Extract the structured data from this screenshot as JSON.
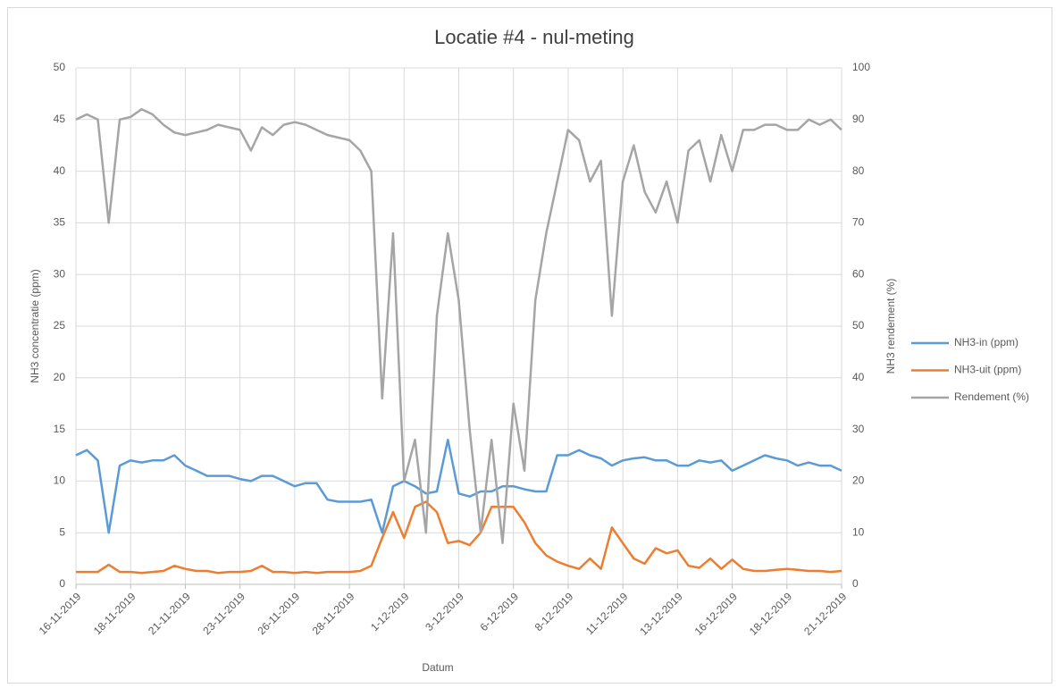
{
  "chart_data": {
    "type": "line",
    "title": "Locatie #4 - nul-meting",
    "x_label": "Datum",
    "y_label": "NH3 concentratie (ppm)",
    "y2_label": "NH3 rendement (%)",
    "x": [
      "2019-11-16T00:00",
      "2019-11-16T12:00",
      "2019-11-17T00:00",
      "2019-11-17T12:00",
      "2019-11-18T00:00",
      "2019-11-18T12:00",
      "2019-11-19T00:00",
      "2019-11-19T12:00",
      "2019-11-20T00:00",
      "2019-11-20T12:00",
      "2019-11-21T00:00",
      "2019-11-21T12:00",
      "2019-11-22T00:00",
      "2019-11-22T12:00",
      "2019-11-23T00:00",
      "2019-11-23T12:00",
      "2019-11-24T00:00",
      "2019-11-24T12:00",
      "2019-11-25T00:00",
      "2019-11-25T12:00",
      "2019-11-26T00:00",
      "2019-11-26T12:00",
      "2019-11-27T00:00",
      "2019-11-27T12:00",
      "2019-11-28T00:00",
      "2019-11-28T12:00",
      "2019-11-29T00:00",
      "2019-11-29T12:00",
      "2019-11-30T00:00",
      "2019-11-30T12:00",
      "2019-12-01T00:00",
      "2019-12-01T12:00",
      "2019-12-02T00:00",
      "2019-12-02T12:00",
      "2019-12-03T00:00",
      "2019-12-03T12:00",
      "2019-12-04T00:00",
      "2019-12-04T12:00",
      "2019-12-05T00:00",
      "2019-12-05T12:00",
      "2019-12-06T00:00",
      "2019-12-06T12:00",
      "2019-12-07T00:00",
      "2019-12-07T12:00",
      "2019-12-08T00:00",
      "2019-12-08T12:00",
      "2019-12-09T00:00",
      "2019-12-09T12:00",
      "2019-12-10T00:00",
      "2019-12-10T12:00",
      "2019-12-11T00:00",
      "2019-12-11T12:00",
      "2019-12-12T00:00",
      "2019-12-12T12:00",
      "2019-12-13T00:00",
      "2019-12-13T12:00",
      "2019-12-14T00:00",
      "2019-12-14T12:00",
      "2019-12-15T00:00",
      "2019-12-15T12:00",
      "2019-12-16T00:00",
      "2019-12-16T12:00",
      "2019-12-17T00:00",
      "2019-12-17T12:00",
      "2019-12-18T00:00",
      "2019-12-18T12:00",
      "2019-12-19T00:00",
      "2019-12-19T12:00",
      "2019-12-20T00:00",
      "2019-12-20T12:00",
      "2019-12-21T00:00"
    ],
    "series": [
      {
        "name": "NH3-in (ppm)",
        "color": "#5b9bd5",
        "values": [
          12.5,
          13,
          12,
          5,
          11.5,
          12,
          11.8,
          12,
          12,
          12.5,
          11.5,
          11,
          10.5,
          10.5,
          10.5,
          10.2,
          10,
          10.5,
          10.5,
          10,
          9.5,
          9.8,
          9.8,
          8.2,
          8,
          8,
          8,
          8.2,
          5,
          9.5,
          10,
          9.5,
          8.8,
          9,
          14,
          8.8,
          8.5,
          9,
          9,
          9.5,
          9.5,
          9.2,
          9,
          9,
          12.5,
          12.5,
          13,
          12.5,
          12.2,
          11.5,
          12,
          12.2,
          12.3,
          12,
          12,
          11.5,
          11.5,
          12,
          11.8,
          12,
          11,
          11.5,
          12,
          12.5,
          12.2,
          12,
          11.5,
          11.8,
          11.5,
          11.5,
          11
        ]
      },
      {
        "name": "NH3-uit (ppm)",
        "color": "#ed7d31",
        "values": [
          1.2,
          1.2,
          1.2,
          1.9,
          1.2,
          1.2,
          1.1,
          1.2,
          1.3,
          1.8,
          1.5,
          1.3,
          1.3,
          1.1,
          1.2,
          1.2,
          1.3,
          1.8,
          1.2,
          1.2,
          1.1,
          1.2,
          1.1,
          1.2,
          1.2,
          1.2,
          1.3,
          1.8,
          4.5,
          7,
          4.5,
          7.5,
          8,
          7,
          4,
          4.2,
          3.8,
          5,
          7.5,
          7.5,
          7.5,
          6,
          4,
          2.8,
          2.2,
          1.8,
          1.5,
          2.5,
          1.5,
          5.5,
          4,
          2.5,
          2,
          3.5,
          3,
          3.3,
          1.8,
          1.6,
          2.5,
          1.5,
          2.4,
          1.5,
          1.3,
          1.3,
          1.4,
          1.5,
          1.4,
          1.3,
          1.3,
          1.2,
          1.3
        ]
      },
      {
        "name": "Rendement (%)",
        "color": "#a5a5a5",
        "axis": "y2",
        "values": [
          90,
          91,
          90,
          70,
          90,
          90.5,
          92,
          91,
          89,
          87.5,
          87,
          87.5,
          88,
          89,
          88.5,
          88,
          84,
          88.5,
          87,
          89,
          89.5,
          89,
          88,
          87,
          86.5,
          86,
          84,
          80,
          36,
          68,
          20,
          28,
          10,
          52,
          68,
          55,
          30,
          10,
          28,
          8,
          35,
          22,
          55,
          68,
          78,
          88,
          86,
          78,
          82,
          52,
          78,
          85,
          76,
          72,
          78,
          70,
          84,
          86,
          78,
          87,
          80,
          88,
          88,
          89,
          89,
          88,
          88,
          90,
          89,
          90,
          88
        ]
      }
    ],
    "xlim": [
      "2019-11-16T00:00",
      "2019-12-21T00:00"
    ],
    "xticks": [
      {
        "value": "2019-11-16T00:00",
        "label": "16-11-2019"
      },
      {
        "value": "2019-11-18T12:00",
        "label": "18-11-2019"
      },
      {
        "value": "2019-11-21T00:00",
        "label": "21-11-2019"
      },
      {
        "value": "2019-11-23T12:00",
        "label": "23-11-2019"
      },
      {
        "value": "2019-11-26T00:00",
        "label": "26-11-2019"
      },
      {
        "value": "2019-11-28T12:00",
        "label": "28-11-2019"
      },
      {
        "value": "2019-12-01T00:00",
        "label": "1-12-2019"
      },
      {
        "value": "2019-12-03T12:00",
        "label": "3-12-2019"
      },
      {
        "value": "2019-12-06T00:00",
        "label": "6-12-2019"
      },
      {
        "value": "2019-12-08T12:00",
        "label": "8-12-2019"
      },
      {
        "value": "2019-12-11T00:00",
        "label": "11-12-2019"
      },
      {
        "value": "2019-12-13T12:00",
        "label": "13-12-2019"
      },
      {
        "value": "2019-12-16T00:00",
        "label": "16-12-2019"
      },
      {
        "value": "2019-12-18T12:00",
        "label": "18-12-2019"
      },
      {
        "value": "2019-12-21T00:00",
        "label": "21-12-2019"
      }
    ],
    "ylim": [
      0,
      50
    ],
    "yticks": [
      0,
      5,
      10,
      15,
      20,
      25,
      30,
      35,
      40,
      45,
      50
    ],
    "y2lim": [
      0,
      100
    ],
    "y2ticks": [
      0,
      10,
      20,
      30,
      40,
      50,
      60,
      70,
      80,
      90,
      100
    ],
    "grid": true,
    "legend": "right"
  }
}
